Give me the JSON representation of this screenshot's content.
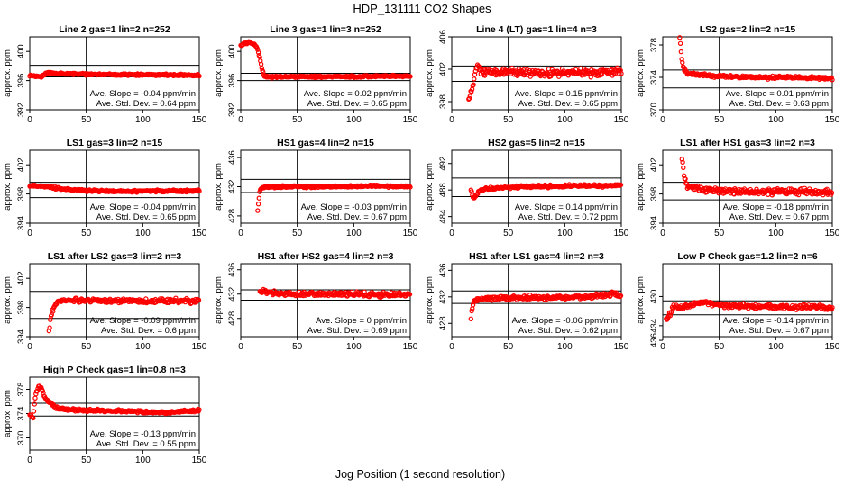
{
  "figure": {
    "title": "HDP_131111  CO2 Shapes",
    "xlabel": "Jog Position (1 second resolution)",
    "ylabel": "approx. ppm",
    "slope_prefix": "Ave. Slope = ",
    "slope_unit": " ppm/min",
    "std_prefix": "Ave. Std. Dev. = ",
    "std_unit": " ppm",
    "marker_color": "#ff0000",
    "line_color": "#000000"
  },
  "chart_data": [
    {
      "type": "scatter",
      "title": "Line 2 gas=1 lin=2 n=252",
      "xlim": [
        0,
        150
      ],
      "ylim": [
        392,
        402
      ],
      "yticks": [
        392,
        396,
        400
      ],
      "xticks": [
        0,
        50,
        100,
        150
      ],
      "hlines": [
        398.1,
        396.5
      ],
      "slope": "-0.04",
      "std": "0.64",
      "shape": [
        [
          0,
          396.6
        ],
        [
          5,
          396.6
        ],
        [
          10,
          396.5
        ],
        [
          13,
          396.8
        ],
        [
          16,
          397.1
        ],
        [
          20,
          397.0
        ],
        [
          40,
          396.9
        ],
        [
          80,
          396.8
        ],
        [
          120,
          396.8
        ],
        [
          150,
          396.7
        ]
      ],
      "start": 0,
      "end": 150,
      "noise": 0.12
    },
    {
      "type": "scatter",
      "title": "Line 3 gas=1 lin=3 n=252",
      "xlim": [
        0,
        150
      ],
      "ylim": [
        392,
        402
      ],
      "yticks": [
        392,
        396,
        400
      ],
      "xticks": [
        0,
        50,
        100,
        150
      ],
      "hlines": [
        397.0,
        396.0
      ],
      "slope": "0.02",
      "std": "0.65",
      "shape": [
        [
          0,
          400.9
        ],
        [
          7,
          401.2
        ],
        [
          12,
          401.0
        ],
        [
          15,
          400.3
        ],
        [
          17,
          399.0
        ],
        [
          19,
          397.5
        ],
        [
          21,
          396.6
        ],
        [
          24,
          396.5
        ],
        [
          150,
          396.6
        ]
      ],
      "start": 0,
      "end": 150,
      "noise": 0.12
    },
    {
      "type": "scatter",
      "title": "Line 4 (LT) gas=1 lin=4 n=3",
      "xlim": [
        0,
        150
      ],
      "ylim": [
        397,
        406
      ],
      "yticks": [
        398,
        402,
        406
      ],
      "xticks": [
        0,
        50,
        100,
        150
      ],
      "hlines": [
        402.4,
        400.5
      ],
      "slope": "0.15",
      "std": "0.65",
      "shape": [
        [
          15,
          398.3
        ],
        [
          18,
          399.5
        ],
        [
          20,
          401.0
        ],
        [
          22,
          402.5
        ],
        [
          25,
          401.8
        ],
        [
          40,
          401.6
        ],
        [
          80,
          401.5
        ],
        [
          120,
          401.6
        ],
        [
          150,
          401.7
        ]
      ],
      "start": 15,
      "end": 150,
      "noise": 0.45
    },
    {
      "type": "scatter",
      "title": "LS2 gas=2 lin=2 n=15",
      "xlim": [
        0,
        150
      ],
      "ylim": [
        370,
        379
      ],
      "yticks": [
        370,
        374,
        378
      ],
      "xticks": [
        0,
        50,
        100,
        150
      ],
      "hlines": [
        374.9,
        372.7
      ],
      "slope": "0.01",
      "std": "0.63",
      "shape": [
        [
          15,
          379.0
        ],
        [
          17,
          376.0
        ],
        [
          19,
          375.0
        ],
        [
          22,
          374.5
        ],
        [
          40,
          374.2
        ],
        [
          80,
          374.0
        ],
        [
          120,
          374.0
        ],
        [
          150,
          373.9
        ]
      ],
      "start": 15,
      "end": 150,
      "noise": 0.18
    },
    {
      "type": "scatter",
      "title": "LS1 gas=3 lin=2 n=15",
      "xlim": [
        0,
        150
      ],
      "ylim": [
        394,
        404
      ],
      "yticks": [
        394,
        398,
        402
      ],
      "xticks": [
        0,
        50,
        100,
        150
      ],
      "hlines": [
        399.6,
        397.5
      ],
      "slope": "-0.04",
      "std": "0.65",
      "shape": [
        [
          0,
          399.2
        ],
        [
          10,
          399.1
        ],
        [
          20,
          398.9
        ],
        [
          35,
          398.6
        ],
        [
          60,
          398.4
        ],
        [
          100,
          398.4
        ],
        [
          150,
          398.4
        ]
      ],
      "start": 0,
      "end": 150,
      "noise": 0.15
    },
    {
      "type": "scatter",
      "title": "HS1 gas=4 lin=2 n=15",
      "xlim": [
        0,
        150
      ],
      "ylim": [
        427,
        437
      ],
      "yticks": [
        428,
        432,
        436
      ],
      "xticks": [
        0,
        50,
        100,
        150
      ],
      "hlines": [
        433.0,
        431.2
      ],
      "slope": "-0.03",
      "std": "0.67",
      "shape": [
        [
          15,
          428.8
        ],
        [
          17,
          431.6
        ],
        [
          19,
          431.9
        ],
        [
          40,
          432.0
        ],
        [
          80,
          432.0
        ],
        [
          120,
          432.1
        ],
        [
          150,
          432.0
        ]
      ],
      "start": 15,
      "end": 150,
      "noise": 0.15
    },
    {
      "type": "scatter",
      "title": "HS2 gas=5 lin=2 n=15",
      "xlim": [
        0,
        150
      ],
      "ylim": [
        483,
        494
      ],
      "yticks": [
        484,
        488,
        492
      ],
      "xticks": [
        0,
        50,
        100,
        150
      ],
      "hlines": [
        489.8,
        487.0
      ],
      "slope": "0.14",
      "std": "0.72",
      "shape": [
        [
          17,
          488.0
        ],
        [
          19,
          486.8
        ],
        [
          21,
          486.9
        ],
        [
          24,
          487.8
        ],
        [
          30,
          488.2
        ],
        [
          60,
          488.5
        ],
        [
          100,
          488.6
        ],
        [
          150,
          488.7
        ]
      ],
      "start": 17,
      "end": 150,
      "noise": 0.18
    },
    {
      "type": "scatter",
      "title": "LS1 after HS1 gas=3 lin=2 n=3",
      "xlim": [
        0,
        150
      ],
      "ylim": [
        394,
        404
      ],
      "yticks": [
        394,
        398,
        402
      ],
      "xticks": [
        0,
        50,
        100,
        150
      ],
      "hlines": [
        399.6,
        397.2
      ],
      "slope": "-0.18",
      "std": "0.67",
      "shape": [
        [
          17,
          403.0
        ],
        [
          19,
          400.2
        ],
        [
          22,
          399.0
        ],
        [
          35,
          398.6
        ],
        [
          70,
          398.3
        ],
        [
          110,
          398.3
        ],
        [
          150,
          398.2
        ]
      ],
      "start": 17,
      "end": 150,
      "noise": 0.4
    },
    {
      "type": "scatter",
      "title": "LS1 after LS2 gas=3 lin=2 n=3",
      "xlim": [
        0,
        150
      ],
      "ylim": [
        394,
        404
      ],
      "yticks": [
        394,
        398,
        402
      ],
      "xticks": [
        0,
        50,
        100,
        150
      ],
      "hlines": [
        400.2,
        396.5
      ],
      "slope": "-0.09",
      "std": "0.6",
      "shape": [
        [
          17,
          394.8
        ],
        [
          19,
          397.0
        ],
        [
          21,
          398.0
        ],
        [
          24,
          398.7
        ],
        [
          30,
          399.0
        ],
        [
          80,
          398.9
        ],
        [
          120,
          398.9
        ],
        [
          150,
          398.9
        ]
      ],
      "start": 17,
      "end": 150,
      "noise": 0.3
    },
    {
      "type": "scatter",
      "title": "HS1 after HS2 gas=4 lin=2 n=3",
      "xlim": [
        0,
        150
      ],
      "ylim": [
        425,
        437
      ],
      "yticks": [
        428,
        432,
        436
      ],
      "xticks": [
        0,
        50,
        100,
        150
      ],
      "hlines": [
        432.7,
        431.0
      ],
      "slope": "0",
      "std": "0.69",
      "shape": [
        [
          17,
          432.3
        ],
        [
          20,
          432.6
        ],
        [
          25,
          432.2
        ],
        [
          40,
          432.0
        ],
        [
          80,
          432.0
        ],
        [
          120,
          431.9
        ],
        [
          150,
          432.0
        ]
      ],
      "start": 17,
      "end": 150,
      "noise": 0.35
    },
    {
      "type": "scatter",
      "title": "HS1 after LS1 gas=4 lin=2 n=3",
      "xlim": [
        0,
        150
      ],
      "ylim": [
        426,
        437
      ],
      "yticks": [
        428,
        432,
        436
      ],
      "xticks": [
        0,
        50,
        100,
        150
      ],
      "hlines": [
        432.9,
        431.0
      ],
      "slope": "-0.06",
      "std": "0.62",
      "shape": [
        [
          17,
          429.0
        ],
        [
          19,
          431.2
        ],
        [
          22,
          431.6
        ],
        [
          40,
          431.8
        ],
        [
          80,
          431.9
        ],
        [
          120,
          432.0
        ],
        [
          145,
          432.5
        ],
        [
          150,
          432.0
        ]
      ],
      "start": 17,
      "end": 150,
      "noise": 0.3
    },
    {
      "type": "scatter",
      "title": "Low P Check gas=1.2 lin=2 n=6",
      "xlim": [
        0,
        150
      ],
      "ylim": [
        435.5,
        425.5
      ],
      "yticks": [
        430,
        434,
        436
      ],
      "xticks": [
        0,
        50,
        100,
        150
      ],
      "hlines": [
        430.6,
        432.5
      ],
      "slope": "-0.14",
      "std": "0.67",
      "shape": [
        [
          3,
          433.2
        ],
        [
          6,
          432.4
        ],
        [
          9,
          431.5
        ],
        [
          20,
          431.4
        ],
        [
          35,
          430.8
        ],
        [
          60,
          431.3
        ],
        [
          100,
          431.4
        ],
        [
          150,
          431.5
        ]
      ],
      "start": 3,
      "end": 150,
      "noise": 0.3
    },
    {
      "type": "scatter",
      "title": "High P Check gas=1 lin=0.8 n=3",
      "xlim": [
        0,
        150
      ],
      "ylim": [
        368,
        380
      ],
      "yticks": [
        370,
        374,
        378
      ],
      "xticks": [
        0,
        50,
        100,
        150
      ],
      "hlines": [
        375.7,
        373.6
      ],
      "slope": "-0.13",
      "std": "0.55",
      "shape": [
        [
          0,
          373.8
        ],
        [
          3,
          373.4
        ],
        [
          5,
          377.0
        ],
        [
          8,
          378.6
        ],
        [
          11,
          378.0
        ],
        [
          14,
          376.3
        ],
        [
          18,
          375.8
        ],
        [
          25,
          374.8
        ],
        [
          40,
          374.6
        ],
        [
          80,
          374.4
        ],
        [
          120,
          374.2
        ],
        [
          150,
          374.5
        ]
      ],
      "start": 0,
      "end": 150,
      "noise": 0.2
    }
  ]
}
